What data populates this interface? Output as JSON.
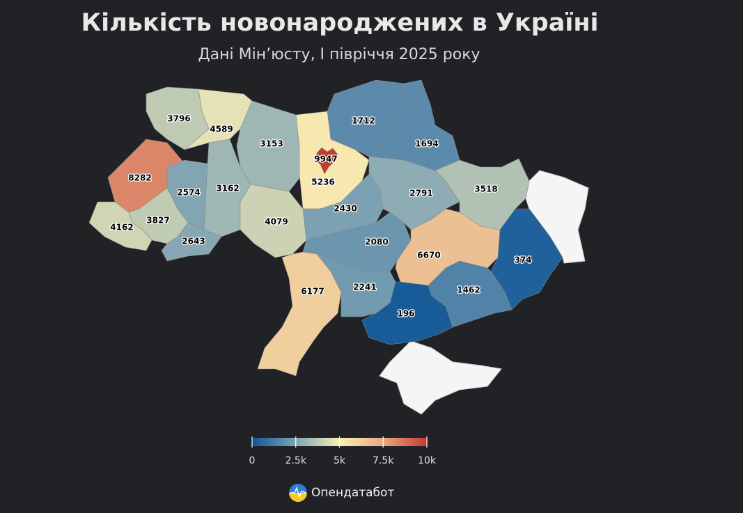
{
  "chart_data": {
    "type": "choropleth",
    "title": "Кількість новонароджених в Україні",
    "subtitle": "Дані Мін’юсту, І півріччя 2025 року",
    "values": [
      3796,
      4589,
      3153,
      1712,
      1694,
      8282,
      2574,
      3162,
      9947,
      5236,
      2791,
      3518,
      4162,
      3827,
      2643,
      4079,
      2430,
      2080,
      6670,
      374,
      6177,
      2241,
      1462,
      196
    ],
    "colorscale": [
      "#0f5597",
      "#7fa3b3",
      "#f9efb5",
      "#e7a882",
      "#c23a2e"
    ],
    "clim": [
      0,
      10000
    ],
    "cticks": [
      0,
      {
        "value": 2500,
        "label": "2.5k"
      },
      {
        "value": 5000,
        "label": "5k"
      },
      {
        "value": 7500,
        "label": "7.5k"
      },
      {
        "value": 10000,
        "label": "10k"
      }
    ],
    "source": "Опендатабот"
  }
}
